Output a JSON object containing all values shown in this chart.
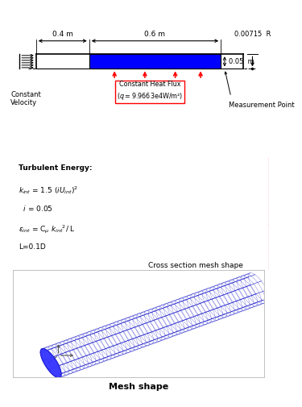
{
  "bg_color": "#ffffff",
  "dim_04": "0.4 m",
  "dim_06": "0.6 m",
  "dim_R": "0.00715  R",
  "dim_005": "0.05  m",
  "label_cv": "Constant\nVelocity",
  "label_hf_line1": "Constant Heat Flux",
  "label_hf_line2": "($q$ = 9.9663e4W/m²)",
  "label_mp": "Measurement Point",
  "label_cross": "Cross section mesh shape",
  "label_mesh": "Mesh shape",
  "turb_line1": "Turbulent Energy:",
  "turb_line2": "$k_{int}$ = 1.5 ($iU_{int}$)$^2$",
  "turb_line3": "  $i$ = 0.05",
  "turb_line4": "$\\varepsilon_{int}$ = C$_{\\mu}$ $k_{int}$$^2$/ L",
  "turb_line5": "L=0.1D",
  "blue_rect": "#0000ff",
  "pink_mesh": "#ff6090",
  "blue_mesh": "#2222cc",
  "blue_mesh_fill": "#aaaaff",
  "blue_front": "#3333ff"
}
